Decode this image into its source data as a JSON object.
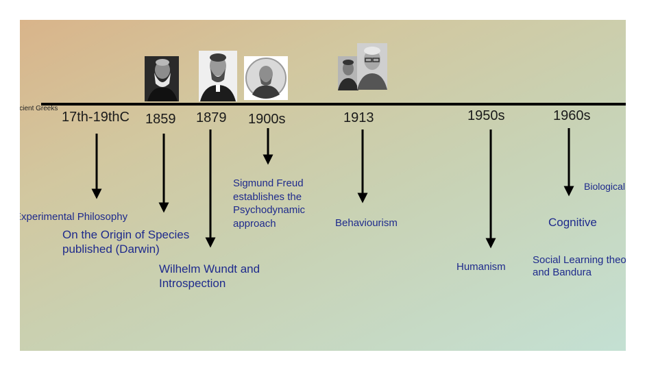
{
  "timeline": {
    "start_label": "Ancient Greeks",
    "years": [
      {
        "id": "y1",
        "label": "17th-19thC"
      },
      {
        "id": "y2",
        "label": "1859"
      },
      {
        "id": "y3",
        "label": "1879"
      },
      {
        "id": "y4",
        "label": "1900s"
      },
      {
        "id": "y5",
        "label": "1913"
      },
      {
        "id": "y6",
        "label": "1950s"
      },
      {
        "id": "y7",
        "label": "1960s"
      }
    ],
    "events": {
      "experimental": "Experimental Philosophy",
      "darwin_1": "On the Origin of Species",
      "darwin_2": "published (Darwin)",
      "wundt_1": "Wilhelm Wundt and",
      "wundt_2": "Introspection",
      "freud_1": "Sigmund Freud",
      "freud_2": "establishes the",
      "freud_3": "Psychodynamic",
      "freud_4": "approach",
      "behaviourism": "Behaviourism",
      "humanism": "Humanism",
      "cognitive": "Cognitive",
      "social_1": "Social Learning theory",
      "social_2": "and Bandura",
      "biological": "Biological"
    }
  },
  "colors": {
    "event_text": "#1e2a8c",
    "year_text": "#1a1a1a",
    "line": "#000000"
  }
}
